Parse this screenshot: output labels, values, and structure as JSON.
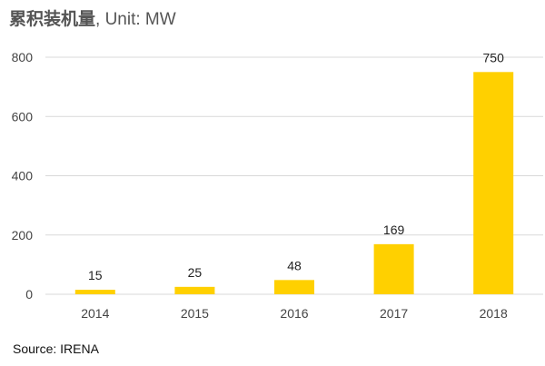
{
  "title": {
    "main": "累积装机量",
    "unit": ", Unit: MW"
  },
  "source": "Source: IRENA",
  "colors": {
    "bar": "#FFD000",
    "grid": "#d9d9d9",
    "axis_text": "#444444",
    "label_text": "#222222"
  },
  "chart_data": {
    "type": "bar",
    "title": "累积装机量, Unit: MW",
    "categories": [
      "2014",
      "2015",
      "2016",
      "2017",
      "2018"
    ],
    "values": [
      15,
      25,
      48,
      169,
      750
    ],
    "data_labels": [
      "15",
      "25",
      "48",
      "169",
      "750"
    ],
    "xlabel": "",
    "ylabel": "",
    "ylim": [
      0,
      800
    ],
    "yticks": [
      0,
      200,
      400,
      600,
      800
    ],
    "grid": true,
    "legend": "none"
  }
}
